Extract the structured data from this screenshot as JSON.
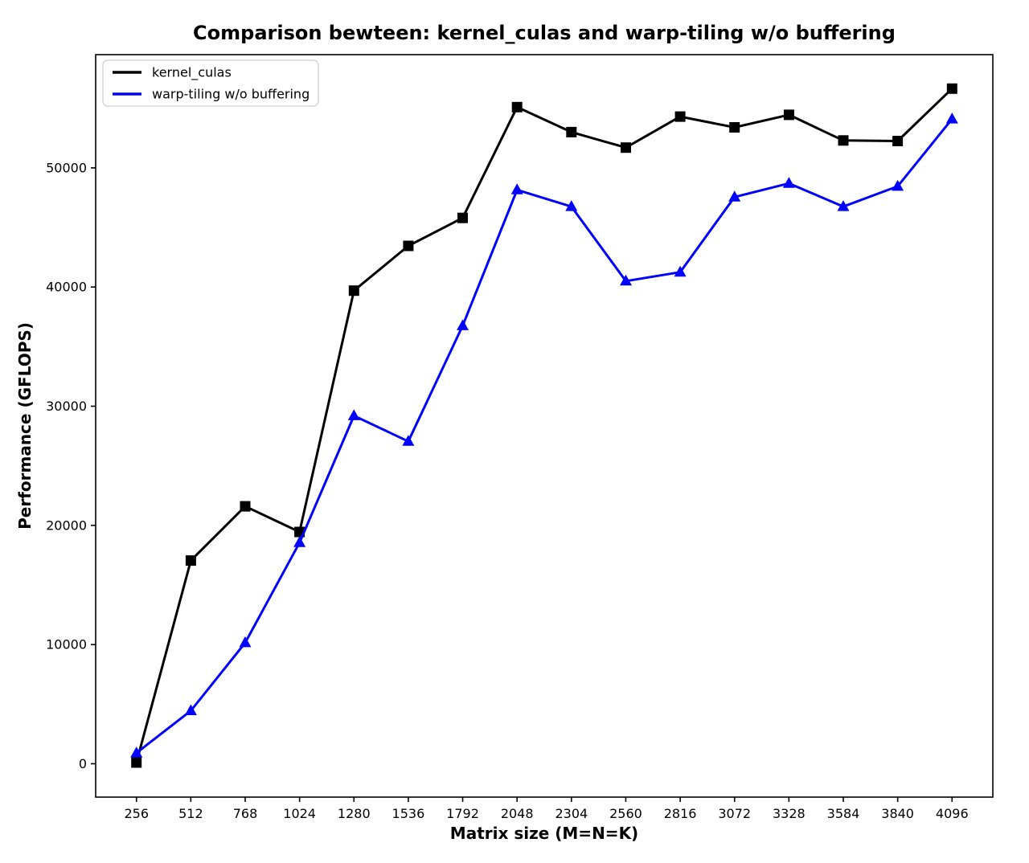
{
  "chart_data": {
    "type": "line",
    "title": "Comparison bewteen: kernel_culas and warp-tiling w/o buffering",
    "xlabel": "Matrix size (M=N=K)",
    "ylabel": "Performance (GFLOPS)",
    "x": [
      256,
      512,
      768,
      1024,
      1280,
      1536,
      1792,
      2048,
      2304,
      2560,
      2816,
      3072,
      3328,
      3584,
      3840,
      4096
    ],
    "series": [
      {
        "name": "kernel_culas",
        "color": "#000000",
        "marker": "square",
        "values": [
          100,
          17050,
          21600,
          19450,
          39700,
          43450,
          45800,
          55100,
          53000,
          51700,
          54300,
          53400,
          54450,
          52300,
          52250,
          56650
        ]
      },
      {
        "name": "warp-tiling w/o buffering",
        "color": "#0000ff",
        "marker": "triangle-up",
        "values": [
          900,
          4450,
          10150,
          18550,
          29200,
          27050,
          36750,
          48150,
          46750,
          40500,
          41250,
          47550,
          48700,
          46750,
          48450,
          54100
        ]
      }
    ],
    "yticks": [
      0,
      10000,
      20000,
      30000,
      40000,
      50000
    ],
    "xlim": [
      64,
      4288
    ],
    "ylim": [
      -2800,
      59500
    ],
    "grid": false,
    "legend_position": "upper-left",
    "background": "#ffffff",
    "axis_color": "#000000"
  }
}
